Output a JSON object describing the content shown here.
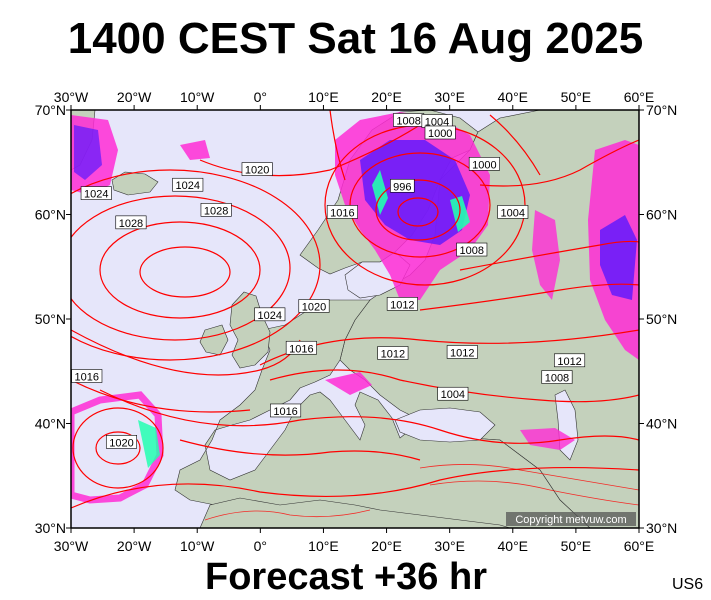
{
  "title": "1400 CEST Sat 16 Aug 2025",
  "footer": "Forecast +36 hr",
  "model_code": "US6",
  "copyright": "Copyright metvuw.com",
  "axes": {
    "top_lon_labels": [
      "30°W",
      "20°W",
      "10°W",
      "0°",
      "10°E",
      "20°E",
      "30°E",
      "40°E",
      "50°E",
      "60°E"
    ],
    "bottom_lon_labels": [
      "30°W",
      "20°W",
      "10°W",
      "0°",
      "10°E",
      "20°E",
      "30°E",
      "40°E",
      "50°E",
      "60°E"
    ],
    "left_lat_labels": [
      "70°N",
      "60°N",
      "50°N",
      "40°N",
      "30°N"
    ],
    "right_lat_labels": [
      "70°N",
      "60°N",
      "50°N",
      "40°N",
      "30°N"
    ]
  },
  "isobar_labels": [
    {
      "text": "1020",
      "lon": -0.5,
      "lat": 64.3
    },
    {
      "text": "1024",
      "lon": -11.5,
      "lat": 62.8
    },
    {
      "text": "1024",
      "lon": -26,
      "lat": 62
    },
    {
      "text": "1028",
      "lon": -20.5,
      "lat": 59.2
    },
    {
      "text": "1028",
      "lon": -7,
      "lat": 60.4
    },
    {
      "text": "1016",
      "lon": 13,
      "lat": 60.2
    },
    {
      "text": "1008",
      "lon": 23.5,
      "lat": 69
    },
    {
      "text": "1004",
      "lon": 28,
      "lat": 68.9
    },
    {
      "text": "1000",
      "lon": 28.5,
      "lat": 67.8
    },
    {
      "text": "1000",
      "lon": 35.5,
      "lat": 64.8
    },
    {
      "text": "996",
      "lon": 22.5,
      "lat": 62.7
    },
    {
      "text": "1004",
      "lon": 40,
      "lat": 60.2
    },
    {
      "text": "1008",
      "lon": 33.5,
      "lat": 56.6
    },
    {
      "text": "1012",
      "lon": 22.5,
      "lat": 51.4
    },
    {
      "text": "1020",
      "lon": 8.5,
      "lat": 51.2
    },
    {
      "text": "1024",
      "lon": 1.5,
      "lat": 50.4
    },
    {
      "text": "1016",
      "lon": 6.5,
      "lat": 47.2
    },
    {
      "text": "1012",
      "lon": 21,
      "lat": 46.7
    },
    {
      "text": "1012",
      "lon": 32,
      "lat": 46.8
    },
    {
      "text": "1012",
      "lon": 49,
      "lat": 46
    },
    {
      "text": "1008",
      "lon": 47,
      "lat": 44.4
    },
    {
      "text": "1004",
      "lon": 30.5,
      "lat": 42.8
    },
    {
      "text": "1016",
      "lon": -27.5,
      "lat": 44.5
    },
    {
      "text": "1016",
      "lon": 4,
      "lat": 41.2
    },
    {
      "text": "1020",
      "lon": -22,
      "lat": 38.2
    }
  ],
  "colors": {
    "ocean": "#e6e6fa",
    "land": "#c4d1bc",
    "isobar": "#ff0000",
    "rain_light": "#ff2bd5",
    "rain_mid": "#5a18ff",
    "rain_heavy": "#22ffb0"
  }
}
